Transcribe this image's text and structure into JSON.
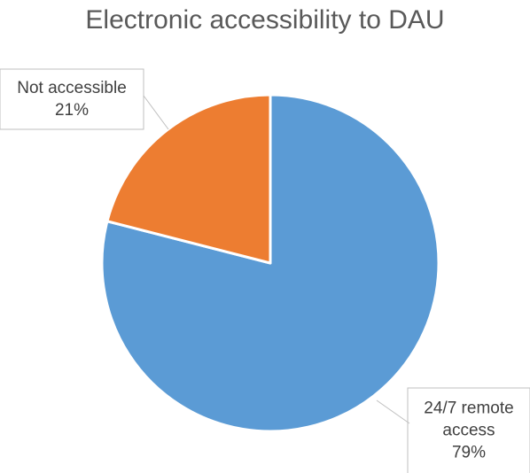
{
  "chart_data": {
    "type": "pie",
    "title": "Electronic accessibility to DAU",
    "slices": [
      {
        "label": "24/7 remote access",
        "label_lines": [
          "24/7 remote",
          "access"
        ],
        "value": 79,
        "percent_label": "79%",
        "color": "#5B9BD5"
      },
      {
        "label": "Not accessible",
        "label_lines": [
          "Not accessible"
        ],
        "value": 21,
        "percent_label": "21%",
        "color": "#ED7D31"
      }
    ],
    "start_angle": "12 o'clock",
    "direction": "clockwise",
    "legend": "none",
    "data_labels": "callout"
  }
}
